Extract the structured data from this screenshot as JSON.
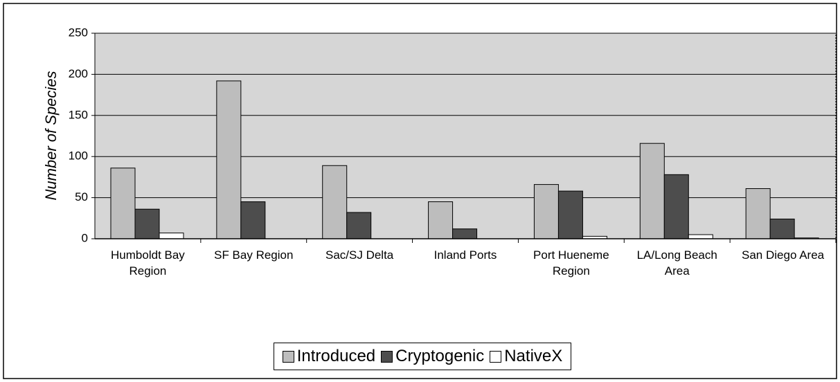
{
  "chart_data": {
    "type": "bar",
    "y_label": "Number of Species",
    "categories": [
      "Humboldt Bay Region",
      "SF Bay Region",
      "Sac/SJ Delta",
      "Inland Ports",
      "Port Hueneme Region",
      "LA/Long Beach Area",
      "San Diego Area"
    ],
    "series": [
      {
        "name": "Introduced",
        "color": "#bdbdbd",
        "values": [
          86,
          192,
          89,
          45,
          66,
          116,
          61
        ]
      },
      {
        "name": "Cryptogenic",
        "color": "#4d4d4d",
        "values": [
          36,
          45,
          32,
          12,
          58,
          78,
          24
        ]
      },
      {
        "name": "NativeX",
        "color": "#ffffff",
        "values": [
          7,
          0,
          0,
          0,
          3,
          5,
          1
        ]
      }
    ],
    "ylim": [
      0,
      250
    ],
    "yticks": [
      0,
      50,
      100,
      150,
      200,
      250
    ],
    "grid": true
  }
}
